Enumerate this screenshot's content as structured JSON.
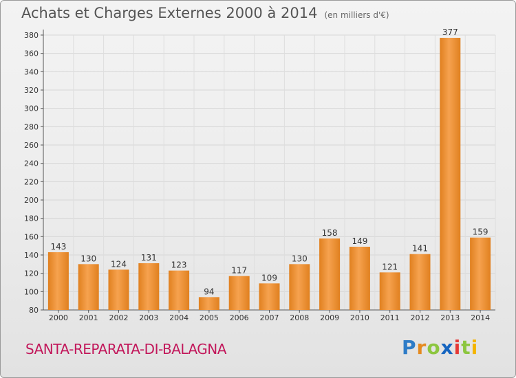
{
  "header": {
    "title": "Achats et Charges Externes 2000 à 2014",
    "subtitle": "(en milliers d'€)"
  },
  "footer": {
    "place": "SANTA-REPARATA-DI-BALAGNA",
    "logo": "Proxiti"
  },
  "colors": {
    "bar_top": "#f7a24e",
    "bar_bottom": "#d9731a",
    "place_text": "#c2185b"
  },
  "chart_data": {
    "type": "bar",
    "categories": [
      "2000",
      "2001",
      "2002",
      "2003",
      "2004",
      "2005",
      "2006",
      "2007",
      "2008",
      "2009",
      "2010",
      "2011",
      "2012",
      "2013",
      "2014"
    ],
    "values": [
      143,
      130,
      124,
      131,
      123,
      94,
      117,
      109,
      130,
      158,
      149,
      121,
      141,
      377,
      159
    ],
    "ylim": [
      80,
      380
    ],
    "yticks": [
      80,
      100,
      120,
      140,
      160,
      180,
      200,
      220,
      240,
      260,
      280,
      300,
      320,
      340,
      360,
      380
    ],
    "grid": true
  }
}
